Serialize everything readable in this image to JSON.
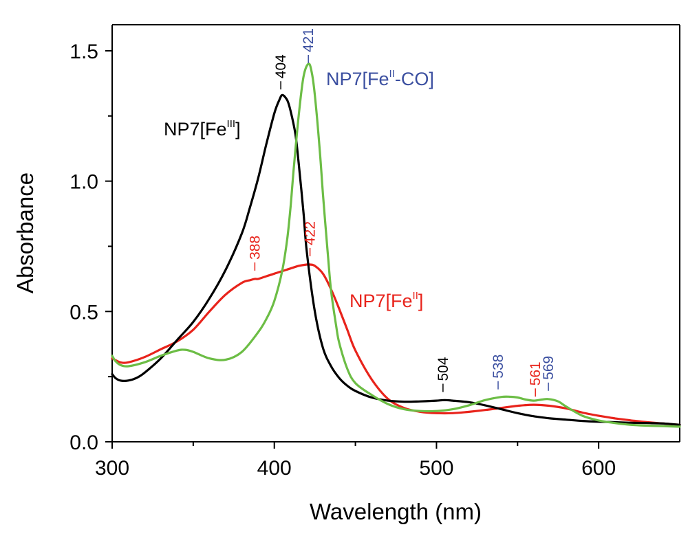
{
  "colors": {
    "fe3": "#000000",
    "fe2": "#e8231b",
    "feco": "#6cbd45",
    "feco_text": "#3b4fa0"
  },
  "chart_data": {
    "type": "line",
    "title": "",
    "xlabel": "Wavelength (nm)",
    "ylabel": "Absorbance",
    "xlim": [
      300,
      650
    ],
    "ylim": [
      0,
      1.6
    ],
    "xticks": [
      300,
      400,
      500,
      600
    ],
    "xtick_labels": [
      "300",
      "400",
      "500",
      "600"
    ],
    "yticks": [
      0.0,
      0.5,
      1.0,
      1.5
    ],
    "ytick_labels": [
      "0.0",
      "0.5",
      "1.0",
      "1.5"
    ],
    "grid": false,
    "legend": "none",
    "series": [
      {
        "name": "NP7[FeIII]",
        "label_base": "NP7[Fe",
        "label_sup": "III",
        "label_tail": "]",
        "color": "#000000",
        "label_color": "#000000",
        "x": [
          300,
          302,
          305,
          310,
          315,
          320,
          330,
          340,
          350,
          360,
          370,
          380,
          385,
          390,
          395,
          400,
          403,
          405,
          408,
          410,
          413,
          415,
          418,
          420,
          425,
          430,
          435,
          440,
          445,
          450,
          460,
          470,
          480,
          490,
          500,
          505,
          510,
          520,
          530,
          540,
          550,
          560,
          570,
          580,
          590,
          600,
          610,
          620,
          630,
          640,
          650
        ],
        "y": [
          0.26,
          0.245,
          0.235,
          0.235,
          0.245,
          0.265,
          0.32,
          0.39,
          0.46,
          0.55,
          0.66,
          0.8,
          0.9,
          1.01,
          1.14,
          1.26,
          1.31,
          1.33,
          1.31,
          1.27,
          1.18,
          1.07,
          0.88,
          0.73,
          0.5,
          0.36,
          0.29,
          0.245,
          0.215,
          0.195,
          0.17,
          0.158,
          0.154,
          0.155,
          0.158,
          0.16,
          0.158,
          0.152,
          0.14,
          0.125,
          0.11,
          0.098,
          0.09,
          0.085,
          0.08,
          0.077,
          0.075,
          0.073,
          0.072,
          0.07,
          0.065
        ]
      },
      {
        "name": "NP7[FeII]",
        "label_base": "NP7[Fe",
        "label_sup": "II",
        "label_tail": "]",
        "color": "#e8231b",
        "label_color": "#e8231b",
        "x": [
          300,
          305,
          310,
          320,
          330,
          340,
          350,
          360,
          370,
          380,
          385,
          388,
          390,
          395,
          400,
          405,
          410,
          415,
          420,
          422,
          425,
          430,
          435,
          440,
          445,
          450,
          460,
          470,
          480,
          490,
          500,
          510,
          520,
          530,
          540,
          550,
          560,
          570,
          580,
          590,
          600,
          610,
          620,
          630,
          640,
          650
        ],
        "y": [
          0.32,
          0.305,
          0.305,
          0.325,
          0.355,
          0.385,
          0.43,
          0.5,
          0.565,
          0.61,
          0.62,
          0.625,
          0.625,
          0.635,
          0.645,
          0.655,
          0.665,
          0.675,
          0.68,
          0.68,
          0.675,
          0.645,
          0.585,
          0.51,
          0.43,
          0.35,
          0.24,
          0.165,
          0.13,
          0.115,
          0.11,
          0.11,
          0.115,
          0.122,
          0.13,
          0.138,
          0.142,
          0.138,
          0.128,
          0.112,
          0.1,
          0.09,
          0.082,
          0.075,
          0.07,
          0.065
        ]
      },
      {
        "name": "NP7[FeII-CO]",
        "label_base": "NP7[Fe",
        "label_sup": "II",
        "label_tail": "-CO]",
        "color": "#6cbd45",
        "label_color": "#3b4fa0",
        "x": [
          300,
          302,
          305,
          310,
          320,
          330,
          340,
          345,
          350,
          360,
          370,
          380,
          390,
          395,
          400,
          405,
          408,
          410,
          412,
          415,
          418,
          421,
          423,
          425,
          428,
          430,
          433,
          435,
          438,
          440,
          445,
          450,
          460,
          470,
          480,
          490,
          500,
          510,
          520,
          530,
          540,
          545,
          550,
          555,
          560,
          565,
          569,
          575,
          580,
          590,
          600,
          610,
          620,
          630,
          640,
          650
        ],
        "y": [
          0.33,
          0.31,
          0.295,
          0.29,
          0.305,
          0.33,
          0.35,
          0.353,
          0.345,
          0.32,
          0.315,
          0.345,
          0.42,
          0.47,
          0.54,
          0.66,
          0.78,
          0.9,
          1.05,
          1.25,
          1.4,
          1.45,
          1.42,
          1.33,
          1.12,
          0.95,
          0.72,
          0.58,
          0.45,
          0.38,
          0.28,
          0.225,
          0.18,
          0.145,
          0.125,
          0.118,
          0.118,
          0.125,
          0.14,
          0.16,
          0.172,
          0.173,
          0.17,
          0.162,
          0.158,
          0.162,
          0.164,
          0.155,
          0.135,
          0.1,
          0.082,
          0.072,
          0.065,
          0.062,
          0.06,
          0.058
        ]
      }
    ],
    "peak_labels": [
      {
        "text": "404",
        "series": 0,
        "color": "#000000"
      },
      {
        "text": "421",
        "series": 2,
        "color": "#3b4fa0"
      },
      {
        "text": "388",
        "series": 1,
        "color": "#e8231b"
      },
      {
        "text": "422",
        "series": 1,
        "color": "#e8231b"
      },
      {
        "text": "504",
        "series": 0,
        "color": "#000000"
      },
      {
        "text": "538",
        "series": 2,
        "color": "#3b4fa0"
      },
      {
        "text": "561",
        "series": 1,
        "color": "#e8231b"
      },
      {
        "text": "569",
        "series": 2,
        "color": "#3b4fa0"
      }
    ]
  }
}
